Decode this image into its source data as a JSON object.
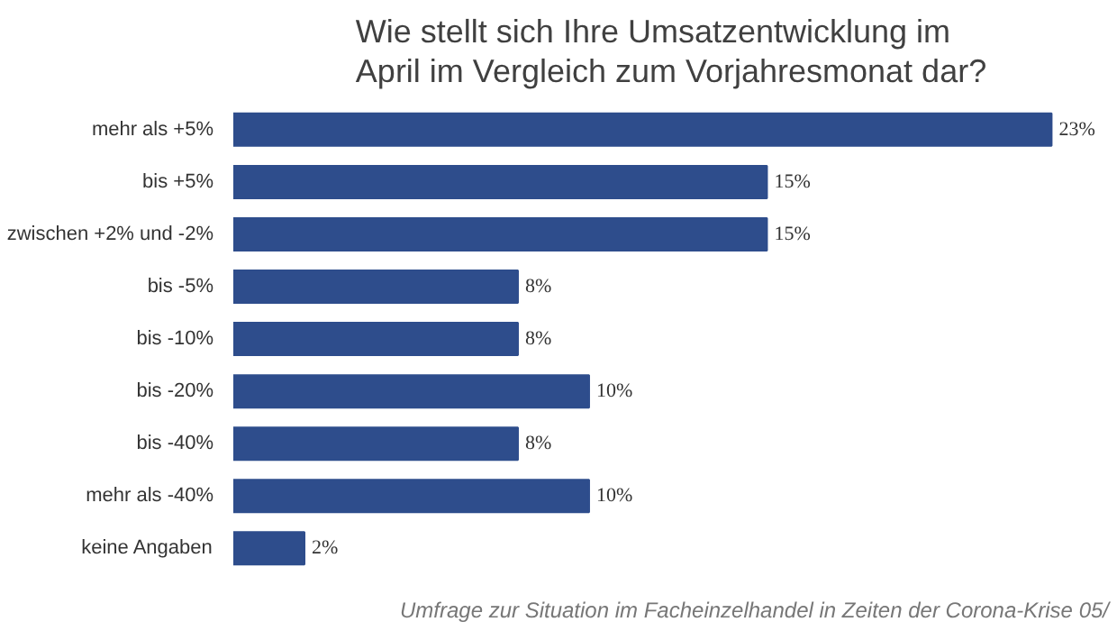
{
  "chart_data": {
    "type": "bar",
    "orientation": "horizontal",
    "title": "Wie stellt sich Ihre Umsatzentwicklung im April im Vergleich zum Vorjahresmonat dar?",
    "categories": [
      "mehr als +5%",
      "bis +5%",
      "zwischen +2% und -2%",
      "bis -5%",
      "bis -10%",
      "bis -20%",
      "bis -40%",
      "mehr als -40%",
      "keine Angaben"
    ],
    "values": [
      23,
      15,
      15,
      8,
      8,
      10,
      8,
      10,
      2
    ],
    "value_labels": [
      "23%",
      "15%",
      "15%",
      "8%",
      "8%",
      "10%",
      "8%",
      "10%",
      "2%"
    ],
    "color": "#2e4d8c",
    "annotations": [
      "Umfrage zur Situation im Facheinzelhandel in Zeiten der Corona-Krise 05/"
    ]
  }
}
